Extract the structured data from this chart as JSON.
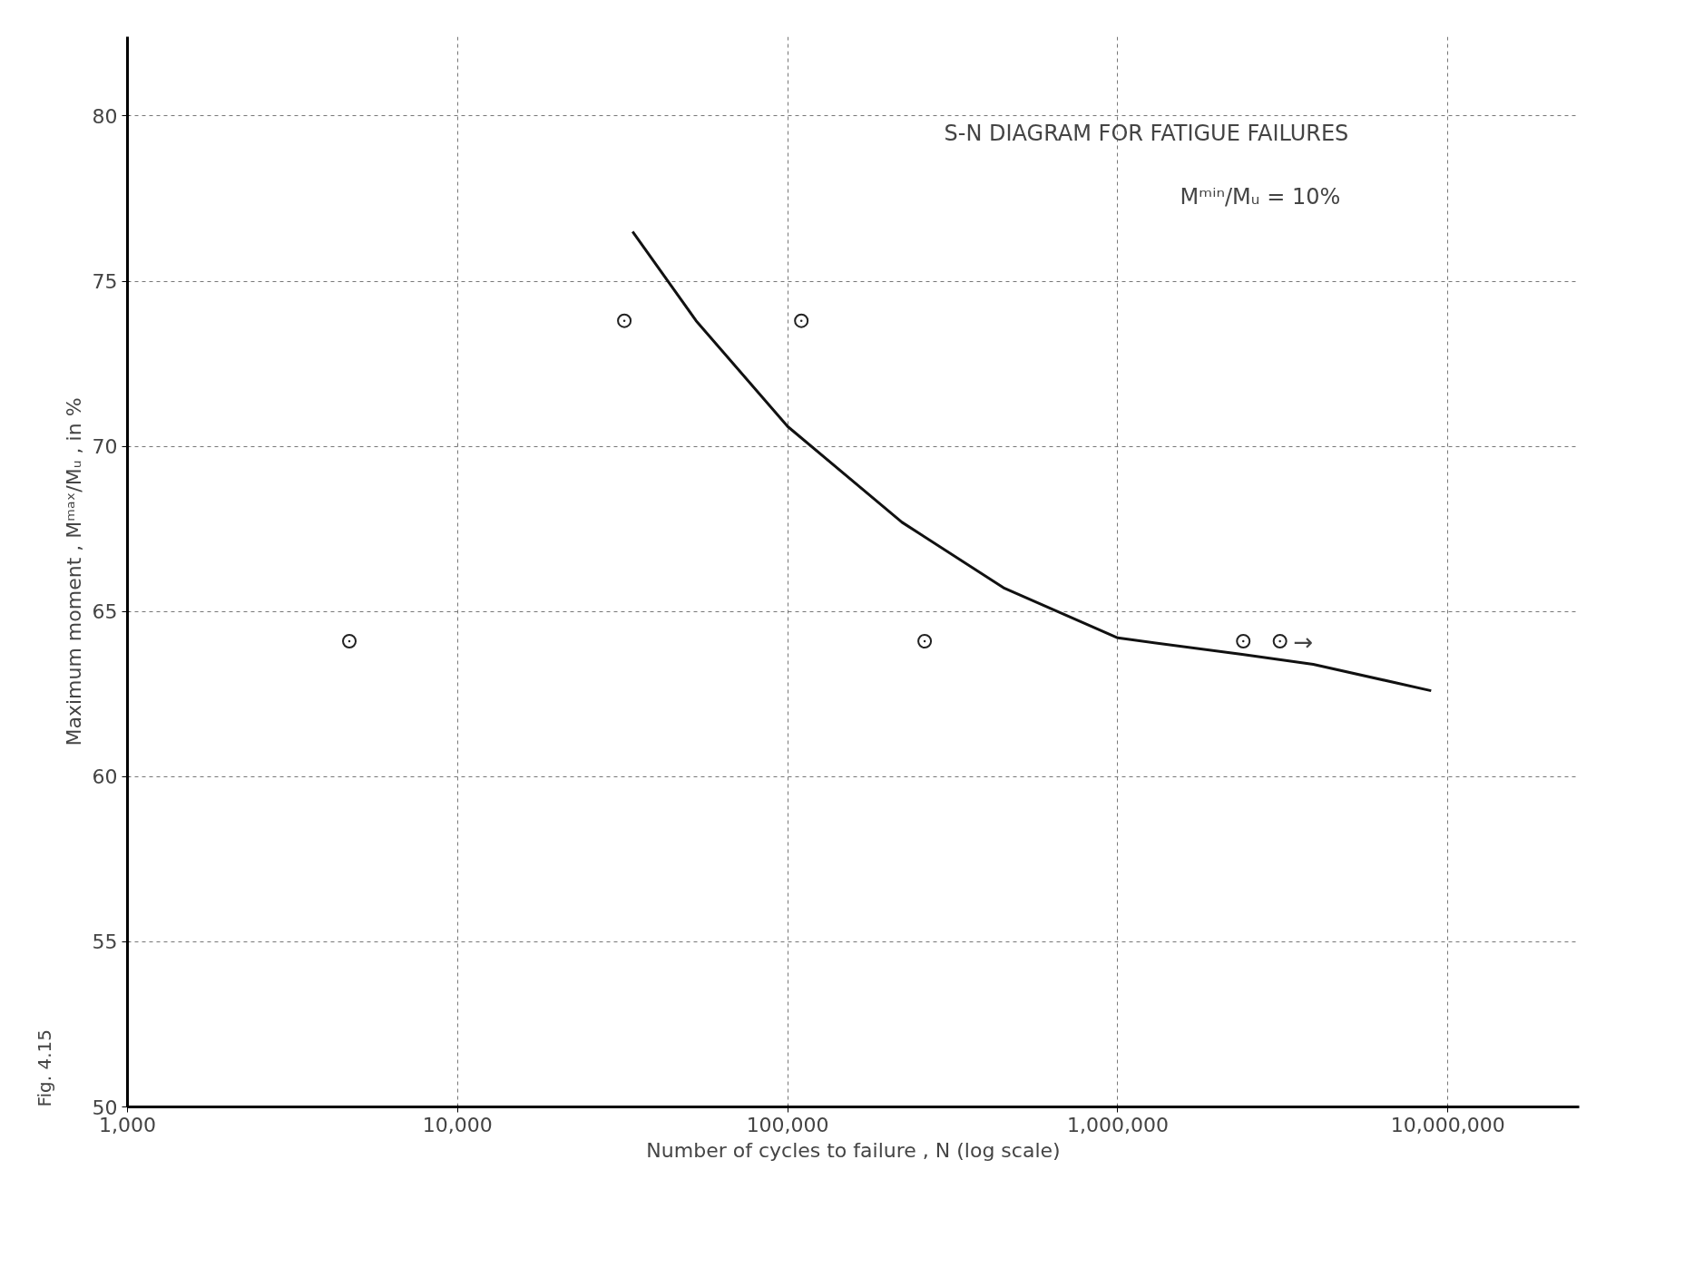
{
  "chart_data": {
    "type": "scatter",
    "xlabel": "Number of cycles to failure , N (log scale)",
    "ylabel": "Maximum moment , Mᵐᵃˣ/Mᵤ , in %",
    "log": "x",
    "xlim": [
      1000,
      25000000
    ],
    "ylim": [
      50,
      82.4
    ],
    "xticks": [
      {
        "value": 1000,
        "label": "1,000"
      },
      {
        "value": 10000,
        "label": "10,000"
      },
      {
        "value": 100000,
        "label": "100,000"
      },
      {
        "value": 1000000,
        "label": "1,000,000"
      },
      {
        "value": 10000000,
        "label": "10,000,000"
      }
    ],
    "yticks": [
      50,
      55,
      60,
      65,
      70,
      75,
      80
    ],
    "grid": true,
    "series": [
      {
        "marker": "circle",
        "color": "#222222",
        "x": [
          4700,
          32000,
          110000,
          260000,
          2400000,
          3100000
        ],
        "values": [
          64.1,
          73.8,
          73.8,
          64.1,
          64.1,
          64.1
        ]
      },
      {
        "type": "line",
        "marker": "none",
        "color": "#111111",
        "x": [
          33900,
          52800,
          100000,
          222000,
          454000,
          1000000,
          2380000,
          3910000,
          8900000
        ],
        "values": [
          76.5,
          73.8,
          70.6,
          67.7,
          65.7,
          64.2,
          63.7,
          63.4,
          62.6
        ]
      }
    ],
    "annotations": [
      "S-N DIAGRAM FOR FATIGUE FAILURES",
      "Mᵐⁱⁿ/Mᵤ = 10%",
      "→",
      "Fig. 4.15"
    ]
  }
}
